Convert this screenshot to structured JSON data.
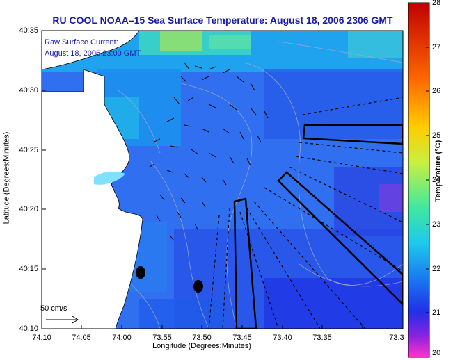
{
  "title": "RU COOL  NOAA–15  Sea Surface Temperature:  August 18, 2006 2306 GMT",
  "current_label": {
    "line1": "Raw Surface Current:",
    "line2": "August 18, 2006 23:00 GMT"
  },
  "scale": {
    "label": "50 cm/s"
  },
  "axes": {
    "x_title": "Longitude (Degrees:Minutes)",
    "y_title": "Latitude (Degrees:Minutes)",
    "x_ticks": [
      "74:10",
      "74:05",
      "74:00",
      "73:55",
      "73:50",
      "73:45",
      "73:40",
      "73:35",
      "73:3"
    ],
    "y_ticks": [
      "40:35",
      "40:30",
      "40:25",
      "40:20",
      "40:15",
      "40:10"
    ]
  },
  "colorbar": {
    "title": "Temperature (°C)",
    "ticks": [
      "28",
      "27",
      "26",
      "25",
      "24",
      "23",
      "22",
      "21",
      "20"
    ],
    "range": [
      20,
      28
    ],
    "colors": [
      "#ff33cc",
      "#8a22e0",
      "#2030e8",
      "#1a78f0",
      "#1ec8ee",
      "#3ee8a0",
      "#c8f040",
      "#ffcc00",
      "#ff6a00",
      "#c00000"
    ]
  },
  "colors": {
    "title": "#1a1aa6",
    "ocean": "#2f6ff0",
    "land": "#ffffff"
  }
}
